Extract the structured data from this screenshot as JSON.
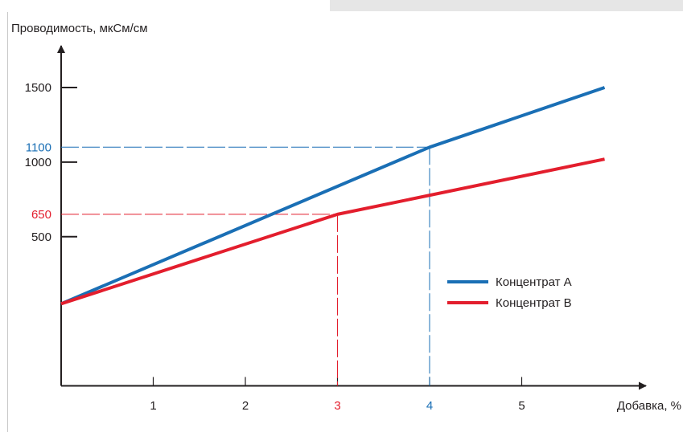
{
  "chart_data": {
    "type": "line",
    "ylabel": "Проводимость, мкСм/см",
    "xlabel": "Добавка, %",
    "xlim": [
      0,
      6
    ],
    "ylim": [
      -500,
      1700
    ],
    "x_ticks": [
      {
        "value": 1,
        "label": "1",
        "color": "#231f20"
      },
      {
        "value": 2,
        "label": "2",
        "color": "#231f20"
      },
      {
        "value": 3,
        "label": "3",
        "color": "#e31e2d"
      },
      {
        "value": 4,
        "label": "4",
        "color": "#1a6fb5"
      },
      {
        "value": 5,
        "label": "5",
        "color": "#231f20"
      }
    ],
    "y_ticks": [
      {
        "value": 500,
        "label": "500"
      },
      {
        "value": 1000,
        "label": "1000"
      },
      {
        "value": 1500,
        "label": "1500"
      }
    ],
    "series": [
      {
        "name": "Концентрат А",
        "color": "#1a6fb5",
        "x": [
          0,
          4,
          5.9
        ],
        "y": [
          50,
          1100,
          1500
        ]
      },
      {
        "name": "Концентрат В",
        "color": "#e31e2d",
        "x": [
          0,
          3,
          5.9
        ],
        "y": [
          50,
          650,
          1020
        ]
      }
    ],
    "reference_lines": [
      {
        "x": 4,
        "y": 1100,
        "label": "1100",
        "color": "#1a6fb5"
      },
      {
        "x": 3,
        "y": 650,
        "label": "650",
        "color": "#e31e2d"
      }
    ],
    "legend_position": "right",
    "grid": false
  }
}
